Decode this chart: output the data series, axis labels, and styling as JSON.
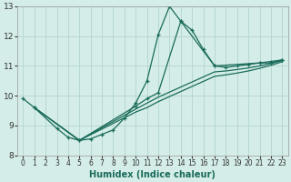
{
  "xlabel": "Humidex (Indice chaleur)",
  "bg_color": "#d4ede8",
  "grid_color": "#b8d8d2",
  "line_color": "#1a6b5a",
  "xlim": [
    -0.5,
    23.5
  ],
  "ylim": [
    8,
    13
  ],
  "xticks": [
    0,
    1,
    2,
    3,
    4,
    5,
    6,
    7,
    8,
    9,
    10,
    11,
    12,
    13,
    14,
    15,
    16,
    17,
    18,
    19,
    20,
    21,
    22,
    23
  ],
  "yticks": [
    8,
    9,
    10,
    11,
    12,
    13
  ],
  "lines": [
    {
      "x": [
        0,
        1,
        3,
        4,
        5,
        6,
        7,
        8,
        9,
        10,
        11,
        12,
        13,
        14,
        15,
        16,
        17,
        21,
        22,
        23
      ],
      "y": [
        9.9,
        9.6,
        8.9,
        8.6,
        8.5,
        8.55,
        8.7,
        8.85,
        9.25,
        9.75,
        10.5,
        12.05,
        13.0,
        12.5,
        12.2,
        11.55,
        11.0,
        11.1,
        11.1,
        11.2
      ],
      "marker": true
    },
    {
      "x": [
        1,
        5,
        10,
        11,
        12,
        14,
        17,
        18,
        19,
        20,
        21,
        22,
        23
      ],
      "y": [
        9.6,
        8.5,
        9.65,
        9.9,
        10.1,
        12.5,
        11.0,
        10.95,
        11.0,
        11.05,
        11.1,
        11.15,
        11.2
      ],
      "marker": true
    },
    {
      "x": [
        1,
        5,
        10,
        11,
        12,
        17,
        18,
        19,
        20,
        21,
        22,
        23
      ],
      "y": [
        9.6,
        8.5,
        9.55,
        9.75,
        9.95,
        10.8,
        10.83,
        10.88,
        10.93,
        11.0,
        11.08,
        11.18
      ],
      "marker": false
    },
    {
      "x": [
        1,
        5,
        10,
        11,
        12,
        17,
        18,
        19,
        20,
        21,
        22,
        23
      ],
      "y": [
        9.6,
        8.5,
        9.45,
        9.6,
        9.8,
        10.65,
        10.7,
        10.76,
        10.83,
        10.92,
        11.02,
        11.14
      ],
      "marker": false
    }
  ]
}
